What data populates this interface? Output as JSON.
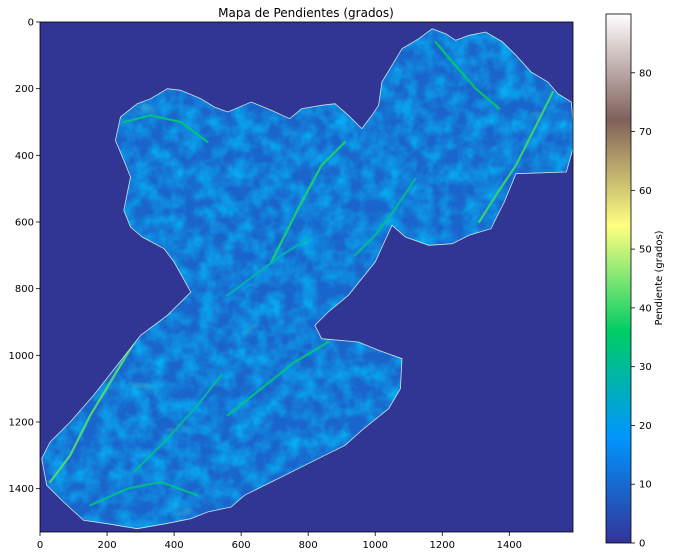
{
  "chart_data": {
    "type": "heatmap",
    "title": "Mapa de Pendientes (grados)",
    "xlabel": "",
    "ylabel": "",
    "xlim": [
      0,
      1590
    ],
    "ylim": [
      1530,
      0
    ],
    "x_ticks": [
      0,
      200,
      400,
      600,
      800,
      1000,
      1200,
      1400
    ],
    "y_ticks": [
      0,
      200,
      400,
      600,
      800,
      1000,
      1200,
      1400
    ],
    "colormap": "terrain",
    "colorbar": {
      "label": "Pendiente (grados)",
      "range": [
        0,
        90
      ],
      "ticks": [
        0,
        10,
        20,
        30,
        40,
        50,
        60,
        70,
        80
      ],
      "stops": [
        "#333399",
        "#0096fe",
        "#00cd66",
        "#ffff80",
        "#80605a",
        "#ffffff"
      ]
    },
    "background_value": 0,
    "background_color": "#313695",
    "region_outline_xy": [
      [
        1170,
        20
      ],
      [
        1210,
        35
      ],
      [
        1240,
        55
      ],
      [
        1280,
        40
      ],
      [
        1330,
        30
      ],
      [
        1380,
        60
      ],
      [
        1420,
        100
      ],
      [
        1465,
        150
      ],
      [
        1515,
        180
      ],
      [
        1545,
        215
      ],
      [
        1585,
        240
      ],
      [
        1590,
        300
      ],
      [
        1590,
        380
      ],
      [
        1570,
        450
      ],
      [
        1420,
        455
      ],
      [
        1385,
        540
      ],
      [
        1345,
        620
      ],
      [
        1280,
        640
      ],
      [
        1230,
        665
      ],
      [
        1160,
        670
      ],
      [
        1090,
        645
      ],
      [
        1050,
        610
      ],
      [
        1000,
        720
      ],
      [
        920,
        820
      ],
      [
        860,
        870
      ],
      [
        820,
        910
      ],
      [
        840,
        950
      ],
      [
        950,
        960
      ],
      [
        1010,
        985
      ],
      [
        1080,
        1010
      ],
      [
        1075,
        1100
      ],
      [
        1040,
        1160
      ],
      [
        960,
        1225
      ],
      [
        910,
        1270
      ],
      [
        850,
        1300
      ],
      [
        770,
        1340
      ],
      [
        690,
        1380
      ],
      [
        610,
        1420
      ],
      [
        570,
        1455
      ],
      [
        500,
        1470
      ],
      [
        450,
        1490
      ],
      [
        375,
        1505
      ],
      [
        290,
        1520
      ],
      [
        200,
        1505
      ],
      [
        130,
        1495
      ],
      [
        70,
        1440
      ],
      [
        20,
        1390
      ],
      [
        5,
        1310
      ],
      [
        30,
        1260
      ],
      [
        90,
        1200
      ],
      [
        160,
        1120
      ],
      [
        230,
        1030
      ],
      [
        300,
        940
      ],
      [
        380,
        880
      ],
      [
        450,
        810
      ],
      [
        400,
        720
      ],
      [
        370,
        680
      ],
      [
        305,
        645
      ],
      [
        270,
        615
      ],
      [
        250,
        565
      ],
      [
        270,
        465
      ],
      [
        250,
        415
      ],
      [
        225,
        355
      ],
      [
        240,
        285
      ],
      [
        290,
        245
      ],
      [
        330,
        230
      ],
      [
        380,
        200
      ],
      [
        420,
        205
      ],
      [
        480,
        230
      ],
      [
        520,
        255
      ],
      [
        560,
        270
      ],
      [
        630,
        240
      ],
      [
        690,
        265
      ],
      [
        745,
        290
      ],
      [
        780,
        260
      ],
      [
        840,
        250
      ],
      [
        880,
        245
      ],
      [
        920,
        280
      ],
      [
        960,
        320
      ],
      [
        990,
        280
      ],
      [
        1010,
        250
      ],
      [
        1020,
        180
      ],
      [
        1050,
        130
      ],
      [
        1080,
        80
      ],
      [
        1130,
        50
      ]
    ],
    "ridges": [
      {
        "value": 38,
        "path_xy": [
          [
            690,
            720
          ],
          [
            770,
            560
          ],
          [
            840,
            430
          ],
          [
            910,
            360
          ]
        ]
      },
      {
        "value": 40,
        "path_xy": [
          [
            1310,
            600
          ],
          [
            1360,
            520
          ],
          [
            1420,
            430
          ],
          [
            1470,
            330
          ],
          [
            1530,
            210
          ]
        ]
      },
      {
        "value": 42,
        "path_xy": [
          [
            30,
            1380
          ],
          [
            90,
            1300
          ],
          [
            150,
            1180
          ],
          [
            210,
            1080
          ],
          [
            270,
            980
          ],
          [
            330,
            880
          ],
          [
            390,
            800
          ]
        ]
      },
      {
        "value": 33,
        "path_xy": [
          [
            560,
            1180
          ],
          [
            660,
            1100
          ],
          [
            760,
            1020
          ],
          [
            860,
            960
          ]
        ]
      },
      {
        "value": 36,
        "path_xy": [
          [
            1180,
            60
          ],
          [
            1230,
            120
          ],
          [
            1300,
            200
          ],
          [
            1370,
            260
          ]
        ]
      },
      {
        "value": 30,
        "path_xy": [
          [
            280,
            1350
          ],
          [
            380,
            1250
          ],
          [
            470,
            1150
          ],
          [
            540,
            1060
          ]
        ]
      },
      {
        "value": 34,
        "path_xy": [
          [
            250,
            300
          ],
          [
            330,
            280
          ],
          [
            420,
            300
          ],
          [
            500,
            360
          ]
        ]
      },
      {
        "value": 31,
        "path_xy": [
          [
            940,
            700
          ],
          [
            1000,
            640
          ],
          [
            1060,
            560
          ],
          [
            1120,
            470
          ]
        ]
      },
      {
        "value": 32,
        "path_xy": [
          [
            150,
            1450
          ],
          [
            260,
            1400
          ],
          [
            360,
            1380
          ],
          [
            470,
            1420
          ]
        ]
      },
      {
        "value": 28,
        "path_xy": [
          [
            560,
            820
          ],
          [
            640,
            760
          ],
          [
            720,
            700
          ],
          [
            800,
            650
          ]
        ]
      }
    ],
    "grid": false
  }
}
